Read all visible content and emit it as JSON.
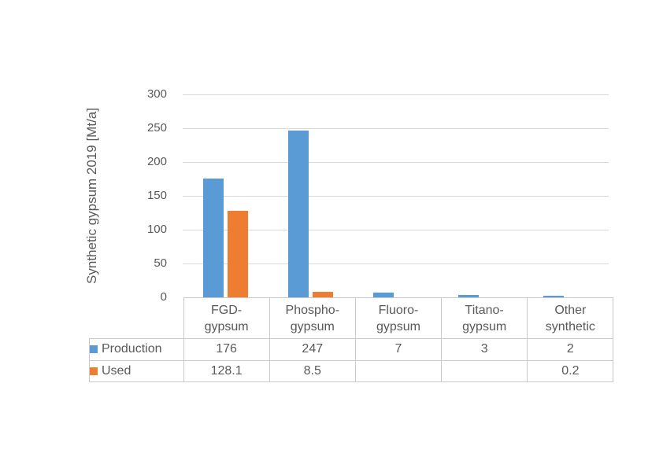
{
  "chart": {
    "y_axis_title": "Synthetic gypsum 2019 [Mt/a]",
    "y_ticks": [
      "300",
      "250",
      "200",
      "150",
      "100",
      "50",
      "0"
    ]
  },
  "chart_data": {
    "type": "bar",
    "title": "",
    "xlabel": "",
    "ylabel": "Synthetic gypsum 2019 [Mt/a]",
    "categories": [
      "FGD-gypsum",
      "Phospho-gypsum",
      "Fluoro-gypsum",
      "Titano-gypsum",
      "Other synthetic"
    ],
    "series": [
      {
        "name": "Production",
        "color": "#5B9BD5",
        "values": [
          176,
          247,
          7,
          3,
          2
        ]
      },
      {
        "name": "Used",
        "color": "#ED7D31",
        "values": [
          128.1,
          8.5,
          null,
          null,
          0.2
        ]
      }
    ],
    "ylim": [
      0,
      300
    ],
    "y_tick_step": 50,
    "grid": true,
    "legend_position": "data-table-row-headers",
    "data_table_shown": true
  },
  "table": {
    "category_display": [
      "FGD-\ngypsum",
      "Phospho-\ngypsum",
      "Fluoro-\ngypsum",
      "Titano-\ngypsum",
      "Other\nsynthetic"
    ],
    "row_headers": [
      "Production",
      "Used"
    ],
    "cells": [
      [
        "176",
        "247",
        "7",
        "3",
        "2"
      ],
      [
        "128.1",
        "8.5",
        "",
        "",
        "0.2"
      ]
    ]
  },
  "colors": {
    "production": "#5B9BD5",
    "used": "#ED7D31",
    "text": "#595959",
    "gridline": "#D9D9D9",
    "table_border": "#C9C9C9",
    "background": "#FFFFFF"
  }
}
